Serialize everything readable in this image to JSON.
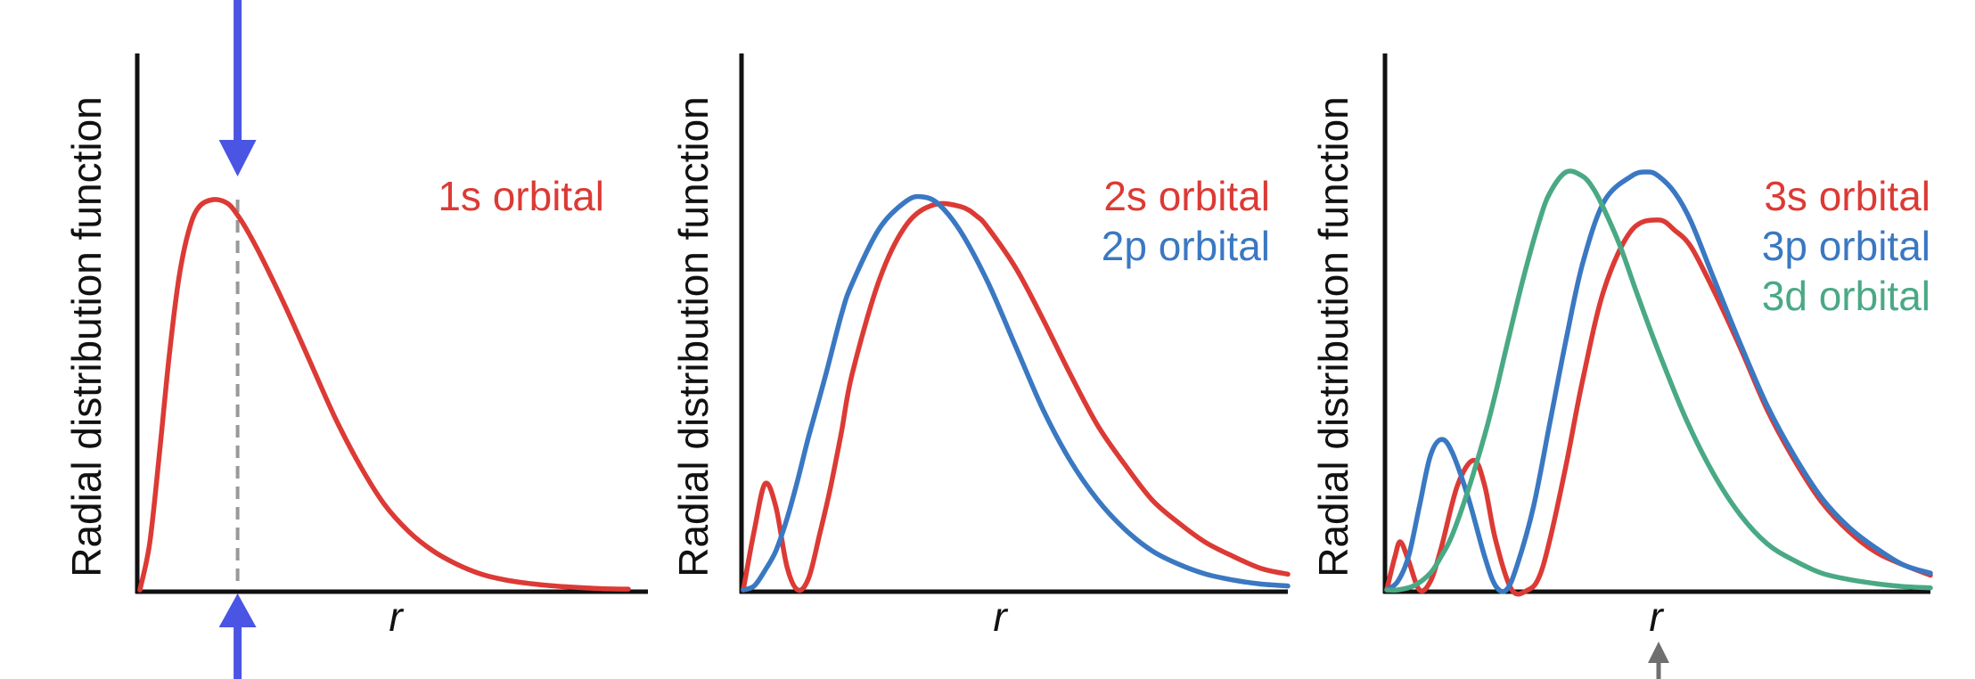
{
  "colors": {
    "axis": "#111111",
    "red": "#dc3a35",
    "blue": "#3a78c2",
    "green": "#4aa985",
    "marker_arrow": "#4a55e4",
    "grey_arrow": "#6f6f6f",
    "dashed_line": "#999999"
  },
  "chart_data": [
    {
      "type": "line",
      "title": "",
      "xlabel": "r",
      "ylabel": "Radial distribution function",
      "ylim": [
        0,
        1
      ],
      "grid": false,
      "legend_position": "top-right",
      "series": [
        {
          "name": "1s orbital",
          "color": "red",
          "x": [
            0.0,
            0.02,
            0.04,
            0.06,
            0.08,
            0.1,
            0.12,
            0.15,
            0.18,
            0.2,
            0.22,
            0.25,
            0.3,
            0.35,
            0.4,
            0.45,
            0.5,
            0.55,
            0.6,
            0.65,
            0.7,
            0.75,
            0.8,
            0.85,
            0.9,
            0.95,
            1.0
          ],
          "y": [
            0.0,
            0.12,
            0.35,
            0.6,
            0.8,
            0.92,
            0.98,
            1.0,
            0.99,
            0.96,
            0.92,
            0.85,
            0.72,
            0.58,
            0.44,
            0.32,
            0.22,
            0.15,
            0.1,
            0.065,
            0.04,
            0.025,
            0.016,
            0.01,
            0.006,
            0.003,
            0.002
          ]
        }
      ],
      "markers": [
        {
          "type": "vertical_dashed",
          "x": 0.2
        },
        {
          "type": "arrow_down_top",
          "x": 0.2
        },
        {
          "type": "arrow_up_bottom",
          "x": 0.2
        }
      ]
    },
    {
      "type": "line",
      "title": "",
      "xlabel": "r",
      "ylabel": "Radial distribution function",
      "ylim": [
        0,
        1
      ],
      "grid": false,
      "legend_position": "top-right",
      "series": [
        {
          "name": "2s orbital",
          "color": "red",
          "x": [
            0.0,
            0.02,
            0.04,
            0.06,
            0.08,
            0.1,
            0.12,
            0.14,
            0.16,
            0.18,
            0.2,
            0.25,
            0.3,
            0.35,
            0.4,
            0.43,
            0.45,
            0.5,
            0.55,
            0.6,
            0.65,
            0.7,
            0.75,
            0.8,
            0.85,
            0.9,
            0.95,
            1.0
          ],
          "y": [
            0.0,
            0.15,
            0.27,
            0.21,
            0.06,
            0.0,
            0.03,
            0.14,
            0.26,
            0.4,
            0.55,
            0.79,
            0.93,
            0.98,
            0.975,
            0.95,
            0.92,
            0.82,
            0.69,
            0.55,
            0.42,
            0.32,
            0.23,
            0.17,
            0.12,
            0.085,
            0.055,
            0.04
          ]
        },
        {
          "name": "2p orbital",
          "color": "blue",
          "x": [
            0.0,
            0.02,
            0.04,
            0.06,
            0.08,
            0.1,
            0.12,
            0.15,
            0.18,
            0.2,
            0.25,
            0.3,
            0.33,
            0.36,
            0.4,
            0.45,
            0.5,
            0.55,
            0.6,
            0.65,
            0.7,
            0.75,
            0.8,
            0.85,
            0.9,
            0.95,
            1.0
          ],
          "y": [
            0.0,
            0.01,
            0.05,
            0.1,
            0.18,
            0.28,
            0.39,
            0.54,
            0.7,
            0.78,
            0.92,
            0.99,
            1.0,
            0.98,
            0.91,
            0.78,
            0.62,
            0.46,
            0.33,
            0.23,
            0.155,
            0.1,
            0.065,
            0.04,
            0.025,
            0.015,
            0.01
          ]
        }
      ]
    },
    {
      "type": "line",
      "title": "",
      "xlabel": "r",
      "ylabel": "Radial distribution function",
      "ylim": [
        0,
        1
      ],
      "grid": false,
      "legend_position": "top-right",
      "series": [
        {
          "name": "3s orbital",
          "color": "red",
          "x": [
            0.0,
            0.015,
            0.025,
            0.04,
            0.06,
            0.08,
            0.1,
            0.13,
            0.16,
            0.18,
            0.2,
            0.23,
            0.26,
            0.28,
            0.3,
            0.33,
            0.36,
            0.4,
            0.45,
            0.5,
            0.53,
            0.56,
            0.6,
            0.65,
            0.7,
            0.75,
            0.8,
            0.85,
            0.9,
            0.95,
            1.0
          ],
          "y": [
            0.0,
            0.08,
            0.115,
            0.07,
            0.0,
            0.02,
            0.1,
            0.25,
            0.31,
            0.25,
            0.12,
            0.0,
            0.0,
            0.03,
            0.12,
            0.3,
            0.5,
            0.72,
            0.86,
            0.885,
            0.86,
            0.82,
            0.72,
            0.58,
            0.43,
            0.31,
            0.21,
            0.14,
            0.09,
            0.06,
            0.035
          ]
        },
        {
          "name": "3p orbital",
          "color": "blue",
          "x": [
            0.0,
            0.02,
            0.04,
            0.06,
            0.08,
            0.1,
            0.12,
            0.15,
            0.18,
            0.2,
            0.22,
            0.24,
            0.27,
            0.3,
            0.33,
            0.36,
            0.4,
            0.45,
            0.48,
            0.5,
            0.53,
            0.56,
            0.6,
            0.65,
            0.7,
            0.75,
            0.8,
            0.85,
            0.9,
            0.95,
            1.0
          ],
          "y": [
            0.0,
            0.02,
            0.08,
            0.2,
            0.32,
            0.36,
            0.33,
            0.22,
            0.08,
            0.01,
            0.0,
            0.06,
            0.2,
            0.4,
            0.6,
            0.78,
            0.93,
            0.99,
            1.0,
            0.99,
            0.95,
            0.88,
            0.75,
            0.59,
            0.44,
            0.32,
            0.22,
            0.15,
            0.1,
            0.06,
            0.04
          ]
        },
        {
          "name": "3d orbital",
          "color": "green",
          "x": [
            0.0,
            0.02,
            0.05,
            0.08,
            0.1,
            0.12,
            0.15,
            0.18,
            0.2,
            0.22,
            0.25,
            0.28,
            0.3,
            0.33,
            0.36,
            0.38,
            0.4,
            0.43,
            0.46,
            0.5,
            0.55,
            0.6,
            0.65,
            0.7,
            0.75,
            0.8,
            0.85,
            0.9,
            0.95,
            1.0
          ],
          "y": [
            0.0,
            0.0,
            0.01,
            0.04,
            0.08,
            0.13,
            0.24,
            0.37,
            0.47,
            0.58,
            0.74,
            0.88,
            0.95,
            1.0,
            0.99,
            0.96,
            0.91,
            0.82,
            0.71,
            0.57,
            0.41,
            0.28,
            0.18,
            0.11,
            0.07,
            0.04,
            0.025,
            0.015,
            0.008,
            0.005
          ]
        }
      ],
      "markers": [
        {
          "type": "arrow_up_below_axis",
          "x": 0.5
        }
      ]
    }
  ]
}
